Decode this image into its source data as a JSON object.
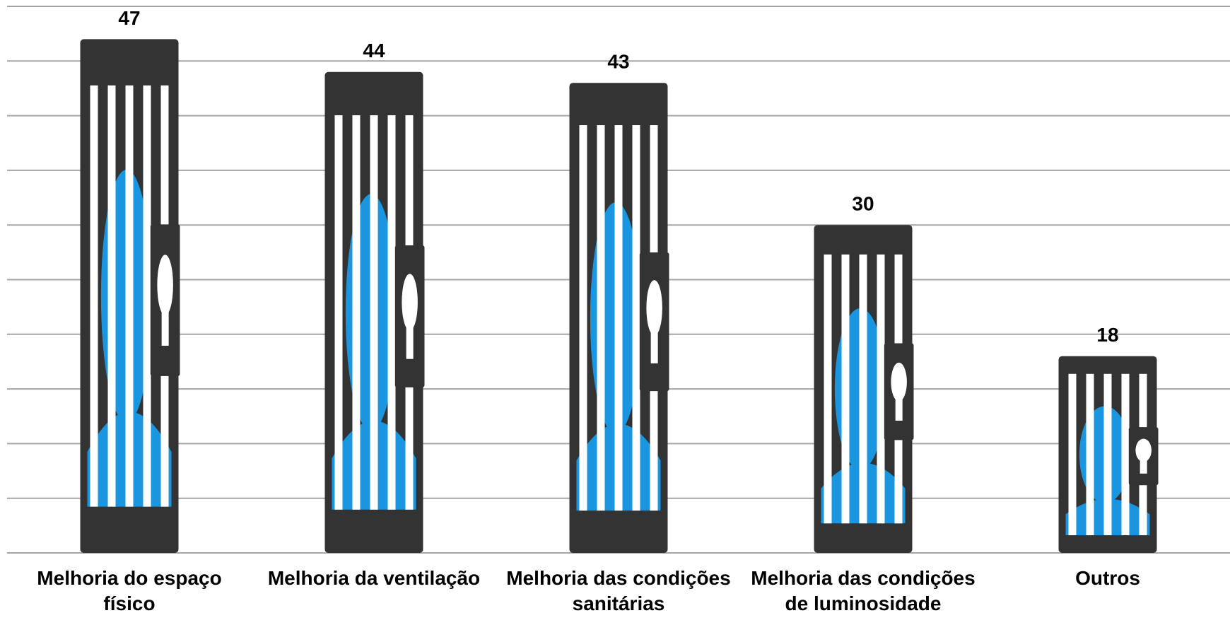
{
  "chart_data": {
    "type": "bar",
    "categories": [
      "Melhoria do espaço físico",
      "Melhoria da ventilação",
      "Melhoria das condições sanitárias",
      "Melhoria das condições de luminosidade",
      "Outros"
    ],
    "values": [
      47,
      44,
      43,
      30,
      18
    ],
    "color": "#333333",
    "ylim": [
      0,
      50
    ],
    "yticks": [
      0,
      5,
      10,
      15,
      20,
      25,
      30,
      35,
      40,
      45,
      50
    ],
    "grid": true
  }
}
